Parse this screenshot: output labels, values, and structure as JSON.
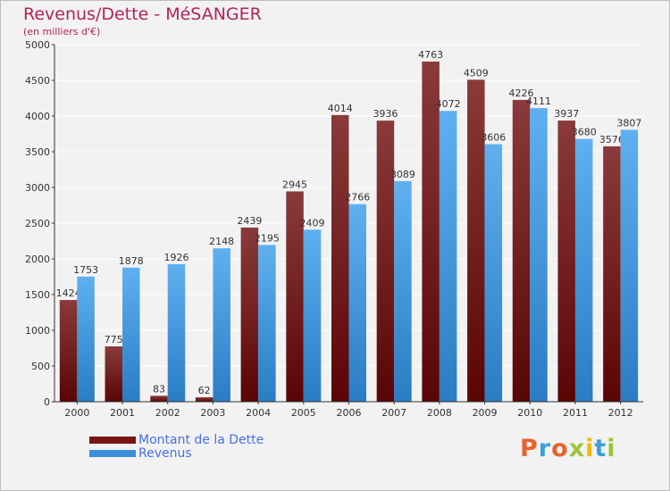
{
  "title": "Revenus/Dette - MéSANGER",
  "subtitle": "(en milliers d'€)",
  "logo": "Proxiti",
  "legend": [
    "Montant de la Dette",
    "Revenus"
  ],
  "colors": {
    "dette": "#7a1414",
    "revenus": "#3b8fd8",
    "grid": "#ffffff",
    "axis": "#333333"
  },
  "chart_data": {
    "type": "bar",
    "categories": [
      "2000",
      "2001",
      "2002",
      "2003",
      "2004",
      "2005",
      "2006",
      "2007",
      "2008",
      "2009",
      "2010",
      "2011",
      "2012"
    ],
    "series": [
      {
        "name": "Montant de la Dette",
        "values": [
          1424,
          775,
          83,
          62,
          2439,
          2945,
          4014,
          3936,
          4763,
          4509,
          4226,
          3937,
          3576
        ]
      },
      {
        "name": "Revenus",
        "values": [
          1753,
          1878,
          1926,
          2148,
          2195,
          2409,
          2766,
          3089,
          4072,
          3606,
          4111,
          3680,
          3807
        ]
      }
    ],
    "value_labels": [
      [
        "1424",
        "775",
        "83",
        "62",
        "2439",
        "2945",
        "4014",
        "3936",
        "4763",
        "4509",
        "4226",
        "3937",
        "3576"
      ],
      [
        "1753",
        "1878",
        "1926",
        "2148",
        "2195",
        "2409",
        "2766",
        "3089",
        "4072",
        "3606",
        "4111",
        "3680",
        "3807"
      ]
    ],
    "ylim": [
      0,
      5000
    ],
    "yticks": [
      0,
      500,
      1000,
      1500,
      2000,
      2500,
      3000,
      3500,
      4000,
      4500,
      5000
    ],
    "grid": true,
    "legend_position": "bottom-left"
  }
}
